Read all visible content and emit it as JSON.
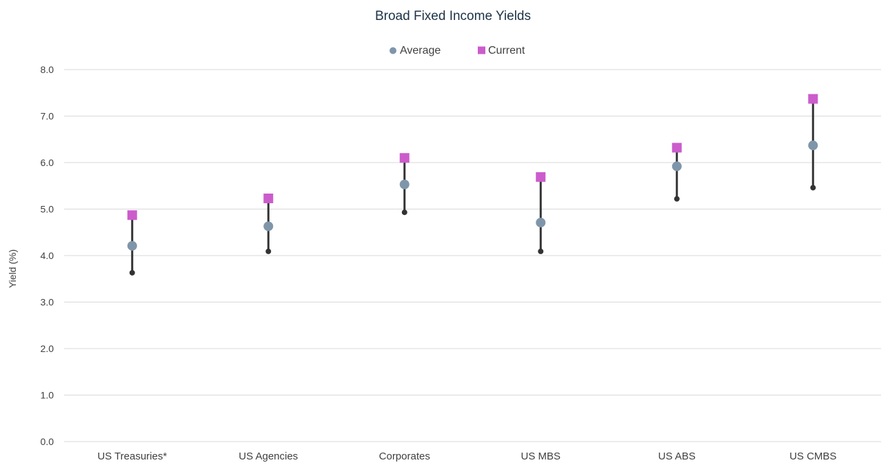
{
  "chart_data": {
    "type": "scatter",
    "title": "Broad Fixed Income Yields",
    "ylabel": "Yield (%)",
    "xlabel": "",
    "ylim": [
      0,
      8
    ],
    "yticks": [
      "0.0",
      "1.0",
      "2.0",
      "3.0",
      "4.0",
      "5.0",
      "6.0",
      "7.0",
      "8.0"
    ],
    "grid": true,
    "legend_position": "top-center",
    "categories": [
      "US Treasuries*",
      "US Agencies",
      "Corporates",
      "US MBS",
      "US ABS",
      "US CMBS"
    ],
    "range_low": [
      3.63,
      4.09,
      4.93,
      4.09,
      5.22,
      5.46
    ],
    "range_high": [
      4.93,
      5.23,
      6.15,
      5.65,
      6.28,
      7.46
    ],
    "series": [
      {
        "name": "Average",
        "marker": "circle",
        "color": "#7f96aa",
        "values": [
          4.21,
          4.63,
          5.53,
          4.71,
          5.92,
          6.37
        ]
      },
      {
        "name": "Current",
        "marker": "square",
        "color": "#cc5ccc",
        "values": [
          4.87,
          5.23,
          6.1,
          5.69,
          6.32,
          7.37
        ]
      }
    ],
    "colors": {
      "range_line": "#333333",
      "grid": "#d9d9d9",
      "title": "#1c3246",
      "text": "#404040"
    }
  }
}
